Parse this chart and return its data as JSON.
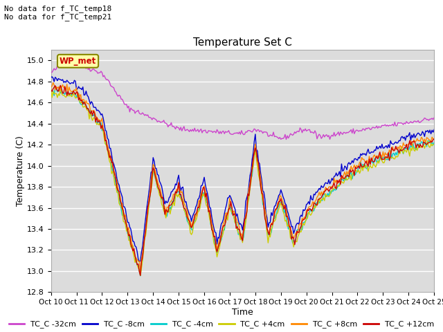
{
  "title": "Temperature Set C",
  "xlabel": "Time",
  "ylabel": "Temperature (C)",
  "ylim": [
    12.8,
    15.1
  ],
  "xlim": [
    0,
    360
  ],
  "bg_color": "#dcdcdc",
  "grid_color": "#ffffff",
  "no_data_text1": "No data for f_TC_temp18",
  "no_data_text2": "No data for f_TC_temp21",
  "wp_met_label": "WP_met",
  "colors": {
    "TC_C_-32cm": "#cc44cc",
    "TC_C_-8cm": "#0000cc",
    "TC_C_-4cm": "#00cccc",
    "TC_C_+4cm": "#cccc00",
    "TC_C_+8cm": "#ff8800",
    "TC_C_+12cm": "#cc0000"
  },
  "legend_labels": [
    "TC_C -32cm",
    "TC_C -8cm",
    "TC_C -4cm",
    "TC_C +4cm",
    "TC_C +8cm",
    "TC_C +12cm"
  ],
  "x_tick_labels": [
    "Oct 10",
    "Oct 11",
    "Oct 12",
    "Oct 13",
    "Oct 14",
    "Oct 15",
    "Oct 16",
    "Oct 17",
    "Oct 18",
    "Oct 19",
    "Oct 20",
    "Oct 21",
    "Oct 22",
    "Oct 23",
    "Oct 24",
    "Oct 25"
  ],
  "x_tick_positions": [
    0,
    24,
    48,
    72,
    96,
    120,
    144,
    168,
    192,
    216,
    240,
    264,
    288,
    312,
    336,
    360
  ]
}
